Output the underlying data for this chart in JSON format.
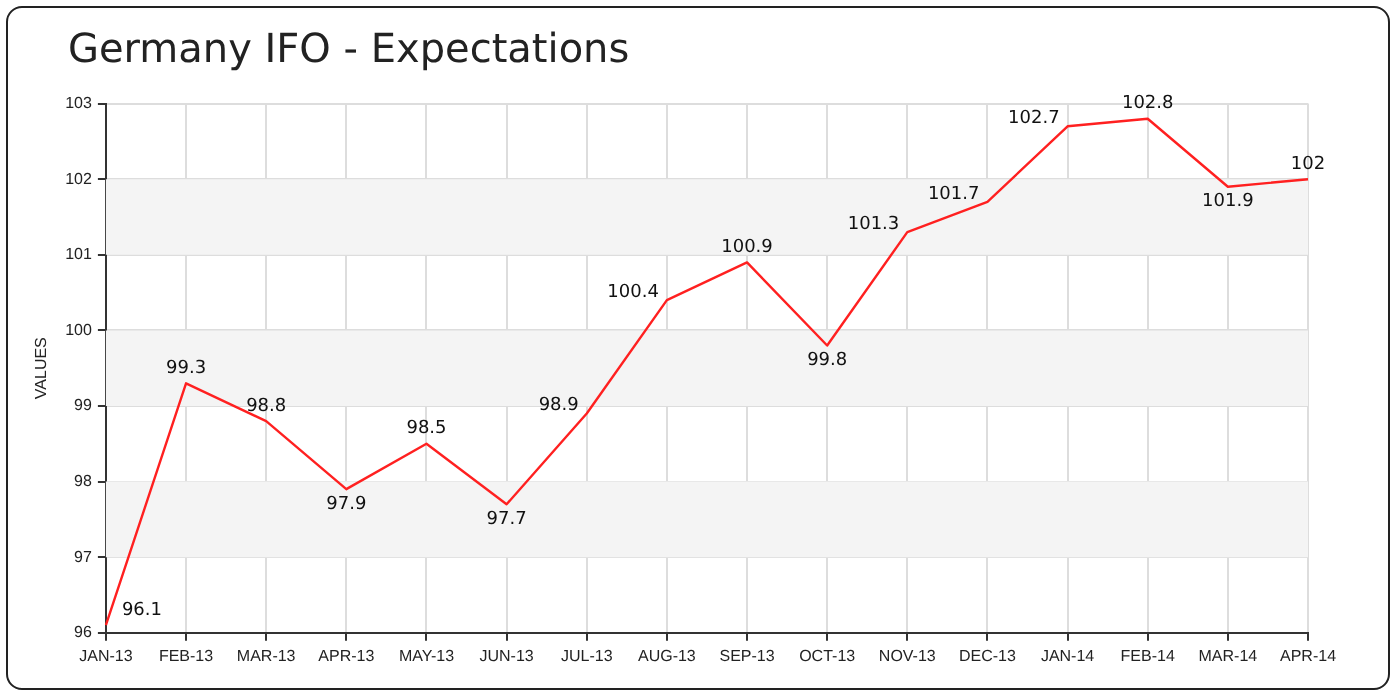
{
  "chart_data": {
    "type": "line",
    "title": "Germany IFO - Expectations",
    "ylabel": "VALUES",
    "categories": [
      "JAN-13",
      "FEB-13",
      "MAR-13",
      "APR-13",
      "MAY-13",
      "JUN-13",
      "JUL-13",
      "AUG-13",
      "SEP-13",
      "OCT-13",
      "NOV-13",
      "DEC-13",
      "JAN-14",
      "FEB-14",
      "MAR-14",
      "APR-14"
    ],
    "series": [
      {
        "color": "#ff2020",
        "values": [
          96.1,
          99.3,
          98.8,
          97.9,
          98.5,
          97.7,
          98.9,
          100.4,
          100.9,
          99.8,
          101.3,
          101.7,
          102.7,
          102.8,
          101.9,
          102
        ]
      }
    ],
    "ylim": [
      96,
      103
    ],
    "yticks": [
      96,
      97,
      98,
      99,
      100,
      101,
      102,
      103
    ],
    "grid": true,
    "legend": false,
    "marker": "none",
    "line_style": "solid",
    "data_labels": true
  }
}
